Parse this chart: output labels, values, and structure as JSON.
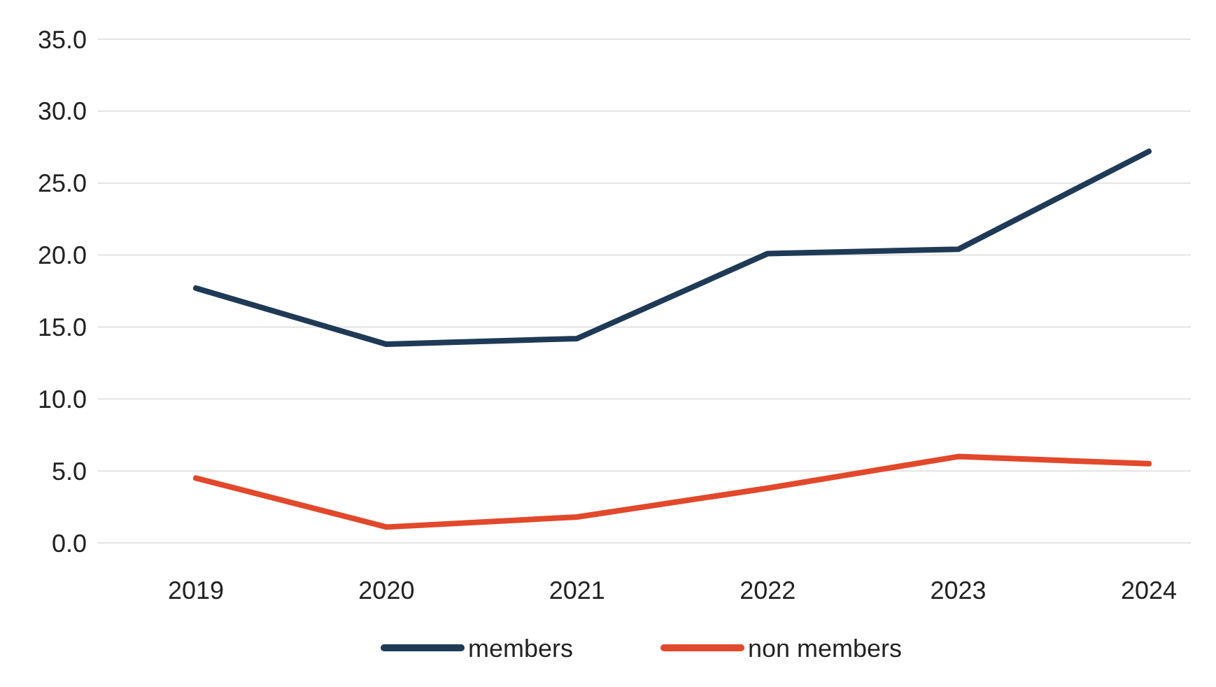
{
  "chart_data": {
    "type": "line",
    "categories": [
      "2019",
      "2020",
      "2021",
      "2022",
      "2023",
      "2024"
    ],
    "series": [
      {
        "name": "members",
        "color": "#1f3a56",
        "values": [
          17.7,
          13.8,
          14.2,
          20.1,
          20.4,
          27.2
        ]
      },
      {
        "name": "non members",
        "color": "#e2482b",
        "values": [
          4.5,
          1.1,
          1.8,
          3.8,
          6.0,
          5.5
        ]
      }
    ],
    "ylim": [
      0,
      35
    ],
    "yticks": [
      {
        "value": 0,
        "label": "0.0"
      },
      {
        "value": 5,
        "label": "5.0"
      },
      {
        "value": 10,
        "label": "10.0"
      },
      {
        "value": 15,
        "label": "15.0"
      },
      {
        "value": 20,
        "label": "20.0"
      },
      {
        "value": 25,
        "label": "25.0"
      },
      {
        "value": 30,
        "label": "30.0"
      },
      {
        "value": 35,
        "label": "35.0"
      }
    ],
    "grid": "y",
    "legend": "bottom",
    "marker": "none",
    "line_style": "solid"
  }
}
